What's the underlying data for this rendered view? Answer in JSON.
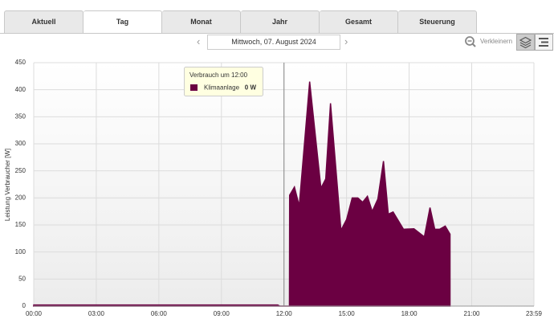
{
  "tabs": [
    "Aktuell",
    "Tag",
    "Monat",
    "Jahr",
    "Gesamt",
    "Steuerung"
  ],
  "active_tab": 1,
  "nav": {
    "date": "Mittwoch, 07. August 2024",
    "zoom": "Verkleinern"
  },
  "chart_data": {
    "type": "area",
    "y_label": "Leistung Verbraucher [W]",
    "x": [
      0,
      11.7,
      11.8,
      12.26,
      12.27,
      12.5,
      12.73,
      13.23,
      13.77,
      14.0,
      14.23,
      14.73,
      15.0,
      15.27,
      15.54,
      15.77,
      16.0,
      16.23,
      16.5,
      16.77,
      17.0,
      17.23,
      17.73,
      18.23,
      18.73,
      19.0,
      19.23,
      19.46,
      19.73,
      19.96
    ],
    "series": [
      {
        "name": "Klimaanlage",
        "color": "#6b0042",
        "values": [
          2,
          2,
          0,
          0,
          205,
          220,
          185,
          415,
          218,
          235,
          375,
          140,
          160,
          200,
          200,
          192,
          203,
          175,
          198,
          268,
          170,
          174,
          142,
          143,
          128,
          182,
          142,
          142,
          148,
          133
        ]
      }
    ],
    "xlim": [
      0,
      23.983
    ],
    "xticks": [
      {
        "value": 0,
        "label": "00:00"
      },
      {
        "value": 3,
        "label": "03:00"
      },
      {
        "value": 6,
        "label": "06:00"
      },
      {
        "value": 9,
        "label": "09:00"
      },
      {
        "value": 12,
        "label": "12:00"
      },
      {
        "value": 15,
        "label": "15:00"
      },
      {
        "value": 18,
        "label": "18:00"
      },
      {
        "value": 21,
        "label": "21:00"
      },
      {
        "value": 23.983,
        "label": "23:59"
      }
    ],
    "ylim": [
      0,
      450
    ],
    "yticks": [
      0,
      50,
      100,
      150,
      200,
      250,
      300,
      350,
      400,
      450
    ],
    "grid": true,
    "cursor": 12,
    "tooltip": {
      "title": "Verbrauch um 12:00",
      "label": "0 W"
    }
  }
}
